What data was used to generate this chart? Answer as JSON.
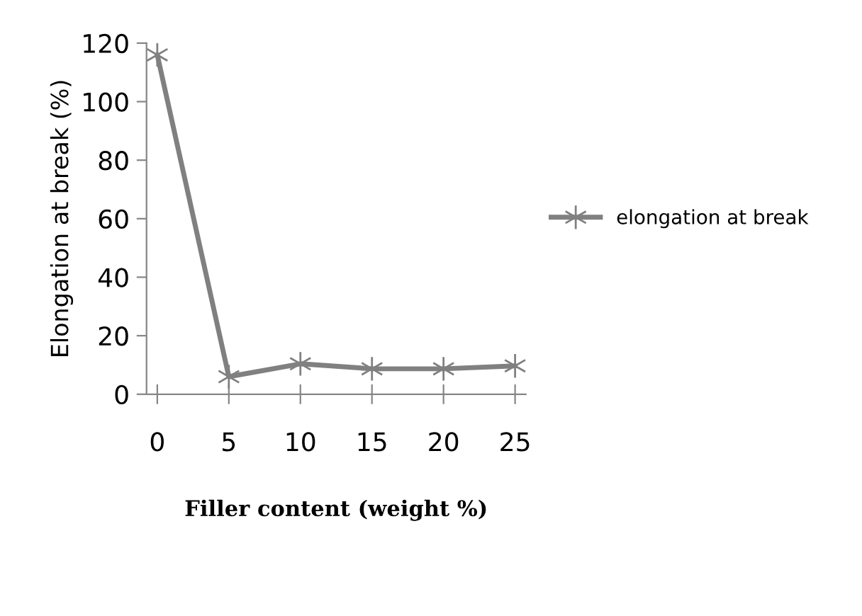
{
  "chart_data": {
    "type": "line",
    "xlabel": "Filler content (weight %)",
    "ylabel": "Elongation at break (%)",
    "categories": [
      "0",
      "5",
      "10",
      "15",
      "20",
      "25"
    ],
    "series": [
      {
        "name": "elongation at break",
        "color": "#808080",
        "values": [
          116,
          6,
          10.4,
          8.7,
          8.7,
          9.7
        ]
      }
    ],
    "ylim": [
      0,
      120
    ],
    "yticks": [
      0,
      20,
      40,
      60,
      80,
      100,
      120
    ],
    "grid": false,
    "legend": "right",
    "marker": "cross",
    "line_style": "solid"
  }
}
